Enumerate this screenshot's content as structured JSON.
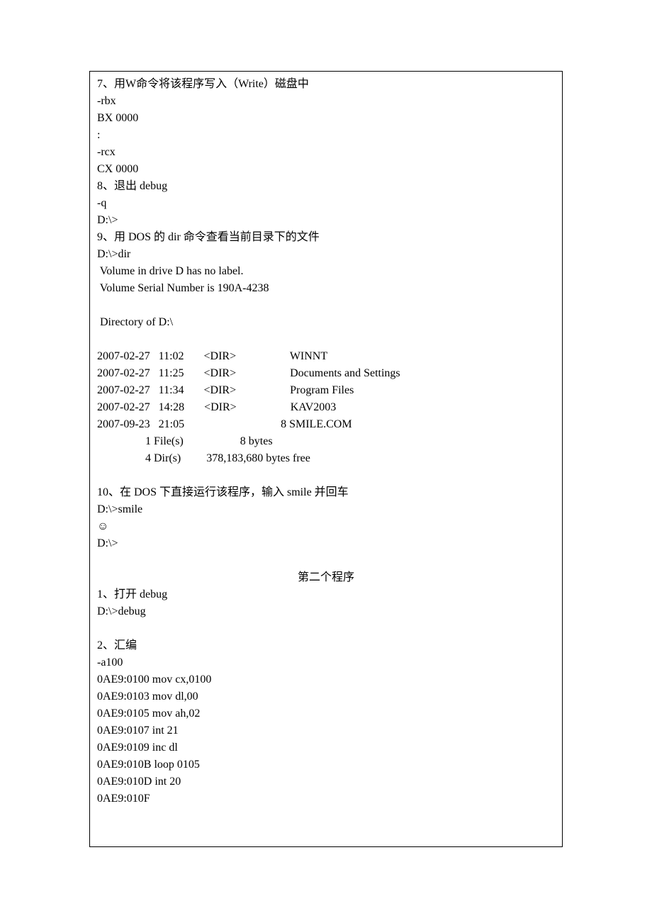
{
  "sec7": {
    "title": "7、用W命令将该程序写入（Write）磁盘中",
    "l1": "-rbx",
    "l2": "BX 0000",
    "l3": ":",
    "l4": "-rcx",
    "l5": "CX 0000"
  },
  "sec8": {
    "title": "8、退出 debug",
    "l1": "-q",
    "l2": "D:\\>"
  },
  "sec9": {
    "title": "9、用 DOS 的 dir 命令查看当前目录下的文件",
    "l1": "D:\\>dir",
    "l2": " Volume in drive D has no label.",
    "l3": " Volume Serial Number is 190A-4238",
    "l4": " Directory of D:\\",
    "rows": [
      {
        "date": "2007-02-27",
        "time": "11:02",
        "dir": "<DIR>",
        "size": "",
        "name": "WINNT"
      },
      {
        "date": "2007-02-27",
        "time": "11:25",
        "dir": "<DIR>",
        "size": "",
        "name": "Documents and Settings"
      },
      {
        "date": "2007-02-27",
        "time": "11:34",
        "dir": "<DIR>",
        "size": "",
        "name": "Program Files"
      },
      {
        "date": "2007-02-27",
        "time": "14:28",
        "dir": "<DIR>",
        "size": "",
        "name": "KAV2003"
      },
      {
        "date": "2007-09-23",
        "time": "21:05",
        "dir": "",
        "size": "8",
        "name": "SMILE.COM"
      }
    ],
    "sum1_a": "1 File(s)",
    "sum1_b": "8 bytes",
    "sum2_a": "4 Dir(s)",
    "sum2_b": "378,183,680 bytes free"
  },
  "sec10": {
    "title": "10、在 DOS 下直接运行该程序，输入 smile 并回车",
    "l1": "D:\\>smile",
    "l2": "☺",
    "l3": "D:\\>"
  },
  "prog2_title": "第二个程序",
  "p1": {
    "title": "1、打开 debug",
    "l1": "D:\\>debug"
  },
  "p2": {
    "title": "2、汇编",
    "l1": "-a100",
    "l2": "0AE9:0100 mov cx,0100",
    "l3": "0AE9:0103 mov dl,00",
    "l4": "0AE9:0105 mov ah,02",
    "l5": "0AE9:0107 int 21",
    "l6": "0AE9:0109 inc dl",
    "l7": "0AE9:010B loop 0105",
    "l8": "0AE9:010D int 20",
    "l9": "0AE9:010F"
  },
  "layout": {
    "col_date_w": 11,
    "col_time_w": 8,
    "col_dir_w": 14,
    "col_size_w": 6,
    "sum_indent": 17,
    "sum_col1_w": 14,
    "sum_col2_pad": 10
  }
}
